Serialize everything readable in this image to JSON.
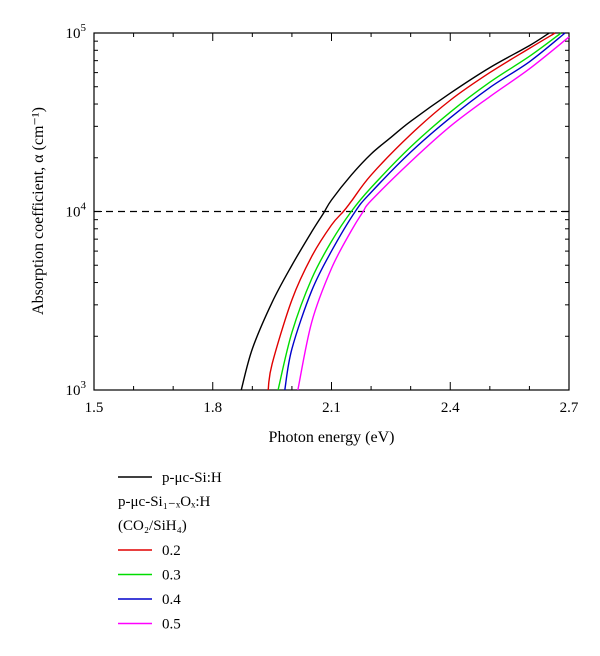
{
  "chart_data": {
    "type": "line",
    "xlabel": "Photon energy (eV)",
    "ylabel": "Absorption coefficient, α (cm⁻¹)",
    "xlim": [
      1.5,
      2.7
    ],
    "ylim": [
      1000,
      100000
    ],
    "yscale": "log",
    "grid": false,
    "legend_position": "below",
    "x_ticks": [
      {
        "value": 1.5,
        "label": "1.5"
      },
      {
        "value": 1.8,
        "label": "1.8"
      },
      {
        "value": 2.1,
        "label": "2.1"
      },
      {
        "value": 2.4,
        "label": "2.4"
      },
      {
        "value": 2.7,
        "label": "2.7"
      }
    ],
    "y_ticks": [
      {
        "value": 1000,
        "base": "10",
        "exp": "3"
      },
      {
        "value": 10000,
        "base": "10",
        "exp": "4"
      },
      {
        "value": 100000,
        "base": "10",
        "exp": "5"
      }
    ],
    "reference_line": {
      "y": 10000,
      "style": "dashed"
    },
    "legend": {
      "group_label_1": "p-μc-Si:H",
      "group_label_2": "p-μc-Si₁₋ₓOₓ:H",
      "group_label_3": "(CO₂/SiH₄)"
    },
    "series": [
      {
        "name": "p-μc-Si:H",
        "color": "#000000",
        "x": [
          1.872,
          1.9,
          1.95,
          2.0,
          2.05,
          2.08,
          2.1,
          2.15,
          2.2,
          2.25,
          2.3,
          2.4,
          2.5,
          2.6,
          2.65
        ],
        "y": [
          1000,
          1700,
          3100,
          5000,
          7700,
          9800,
          11600,
          16000,
          21000,
          26000,
          32000,
          46000,
          64000,
          85000,
          100000
        ]
      },
      {
        "name": "0.2",
        "color": "#e00000",
        "x": [
          1.94,
          1.95,
          2.0,
          2.05,
          2.1,
          2.13,
          2.15,
          2.2,
          2.3,
          2.4,
          2.5,
          2.6,
          2.665
        ],
        "y": [
          1000,
          1400,
          3200,
          5600,
          8400,
          10000,
          11400,
          16000,
          27000,
          42000,
          60000,
          82000,
          100000
        ]
      },
      {
        "name": "0.3",
        "color": "#00dd00",
        "x": [
          1.965,
          2.0,
          2.05,
          2.1,
          2.15,
          2.2,
          2.3,
          2.4,
          2.5,
          2.6,
          2.68
        ],
        "y": [
          1000,
          2100,
          4200,
          6800,
          10000,
          13600,
          23000,
          36000,
          53000,
          74000,
          100000
        ]
      },
      {
        "name": "0.4",
        "color": "#0000cc",
        "x": [
          1.982,
          2.0,
          2.05,
          2.1,
          2.16,
          2.2,
          2.3,
          2.4,
          2.5,
          2.6,
          2.69
        ],
        "y": [
          1000,
          1700,
          3600,
          6000,
          10000,
          12800,
          21500,
          33500,
          49500,
          69000,
          100000
        ]
      },
      {
        "name": "0.5",
        "color": "#ff00ff",
        "x": [
          2.015,
          2.05,
          2.1,
          2.15,
          2.18,
          2.2,
          2.3,
          2.4,
          2.5,
          2.6,
          2.7
        ],
        "y": [
          1000,
          2400,
          4800,
          7800,
          10000,
          11500,
          19000,
          30000,
          44000,
          63000,
          95000
        ]
      }
    ]
  }
}
